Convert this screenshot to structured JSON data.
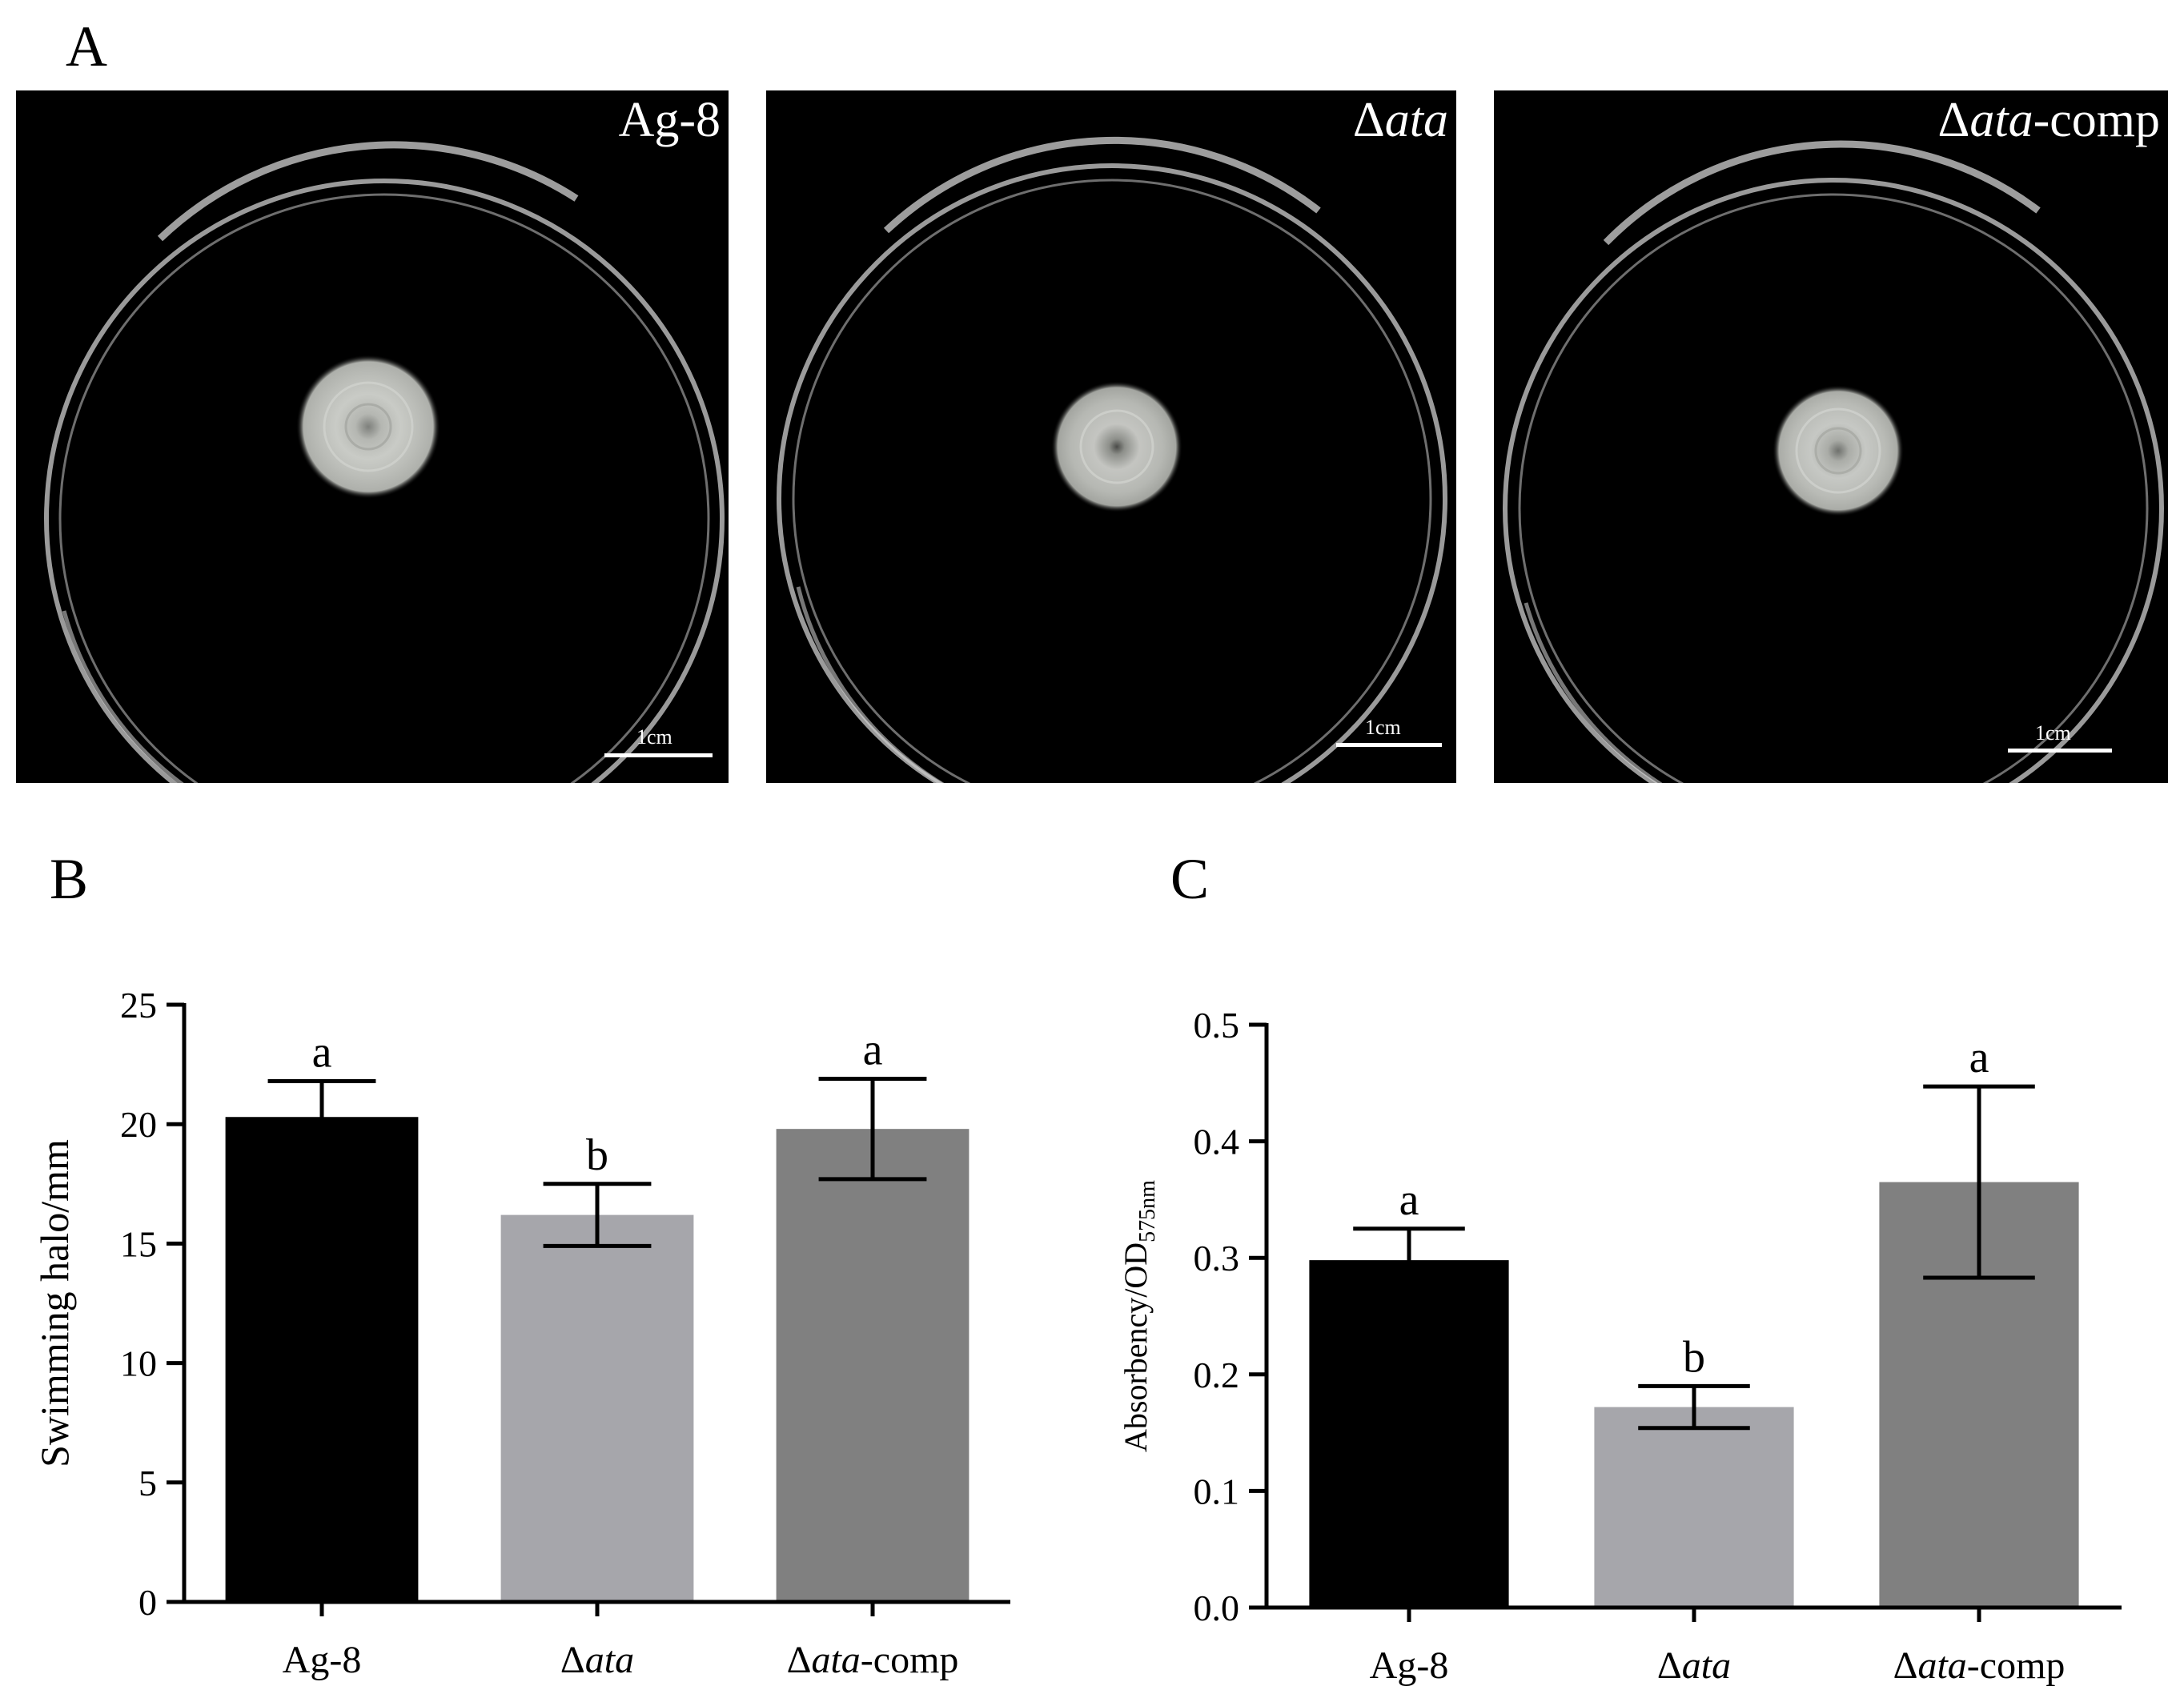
{
  "panels": {
    "a": {
      "letter": "A"
    },
    "b": {
      "letter": "B"
    },
    "c": {
      "letter": "C"
    }
  },
  "plates": [
    {
      "label": "Ag-8",
      "label_prefix": "",
      "label_italic": "",
      "label_suffix": "Ag-8",
      "scale_text": "1cm",
      "halo_color": "#c9cbc6"
    },
    {
      "label": "Δata",
      "label_prefix": "Δ",
      "label_italic": "ata",
      "label_suffix": "",
      "scale_text": "1cm",
      "halo_color": "#c4c5c1"
    },
    {
      "label": "Δata-comp",
      "label_prefix": "Δ",
      "label_italic": "ata",
      "label_suffix": "-comp",
      "scale_text": "1cm",
      "halo_color": "#c6c8c4"
    }
  ],
  "chart_data": [
    {
      "type": "bar",
      "panel": "B",
      "categories": [
        {
          "prefix": "",
          "italic": "",
          "suffix": "Ag-8"
        },
        {
          "prefix": "Δ",
          "italic": "ata",
          "suffix": ""
        },
        {
          "prefix": "Δ",
          "italic": "ata",
          "suffix": "-comp"
        }
      ],
      "values": [
        20.3,
        16.2,
        19.8
      ],
      "errors": [
        1.5,
        1.3,
        2.1
      ],
      "significance": [
        "a",
        "b",
        "a"
      ],
      "colors": [
        "#000000",
        "#a6a6ab",
        "#808080"
      ],
      "ylabel": "Swimming halo/mm",
      "ylim": [
        0,
        25
      ],
      "yticks": [
        0,
        5,
        10,
        15,
        20,
        25
      ],
      "ytick_labels": [
        "0",
        "5",
        "10",
        "15",
        "20",
        "25"
      ]
    },
    {
      "type": "bar",
      "panel": "C",
      "categories": [
        {
          "prefix": "",
          "italic": "",
          "suffix": "Ag-8"
        },
        {
          "prefix": "Δ",
          "italic": "ata",
          "suffix": ""
        },
        {
          "prefix": "Δ",
          "italic": "ata",
          "suffix": "-comp"
        }
      ],
      "values": [
        0.298,
        0.172,
        0.365
      ],
      "errors": [
        0.027,
        0.018,
        0.082
      ],
      "significance": [
        "a",
        "b",
        "a"
      ],
      "colors": [
        "#000000",
        "#a6a6ab",
        "#808080"
      ],
      "ylabel": "Absorbency/OD",
      "ylabel_sub": "575nm",
      "ylim": [
        0,
        0.5
      ],
      "yticks": [
        0,
        0.1,
        0.2,
        0.3,
        0.4,
        0.5
      ],
      "ytick_labels": [
        "0.0",
        "0.1",
        "0.2",
        "0.3",
        "0.4",
        "0.5"
      ]
    }
  ]
}
